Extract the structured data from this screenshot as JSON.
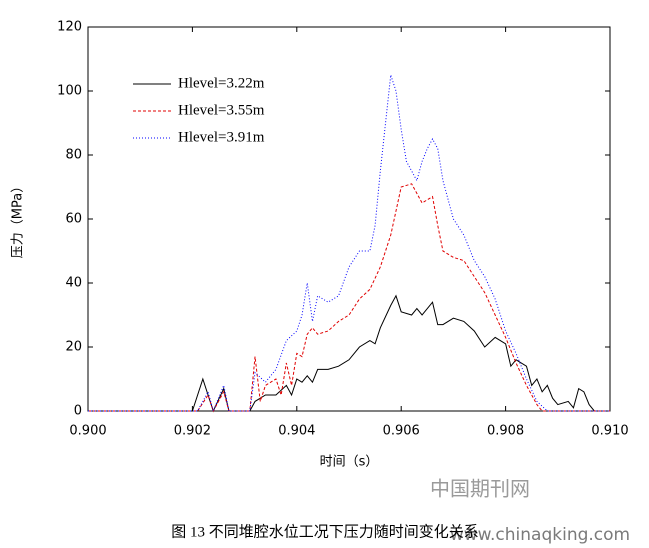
{
  "chart_data": {
    "type": "line",
    "caption": "图 13  不同堆腔水位工况下压力随时间变化关系",
    "xlabel": "时间（s）",
    "ylabel": "压力（MPa）",
    "watermark": [
      "中国期刊网",
      "www.chinaqking.com"
    ],
    "xlim": [
      0.9,
      0.91
    ],
    "xticks": [
      {
        "value": 0.9,
        "label": "0.900"
      },
      {
        "value": 0.902,
        "label": "0.902"
      },
      {
        "value": 0.904,
        "label": "0.904"
      },
      {
        "value": 0.906,
        "label": "0.906"
      },
      {
        "value": 0.908,
        "label": "0.908"
      },
      {
        "value": 0.91,
        "label": "0.910"
      }
    ],
    "ylim": [
      0,
      120
    ],
    "yticks": [
      0,
      20,
      40,
      60,
      80,
      100,
      120
    ],
    "legend": "upper left",
    "series": [
      {
        "name": "Hlevel=3.22m",
        "color": "#000000",
        "dash": "solid",
        "x": [
          0.9,
          0.902,
          0.9022,
          0.9024,
          0.9026,
          0.9027,
          0.9031,
          0.9032,
          0.9034,
          0.9036,
          0.9038,
          0.9039,
          0.904,
          0.9041,
          0.9042,
          0.9043,
          0.9044,
          0.9046,
          0.9048,
          0.905,
          0.9052,
          0.9054,
          0.9055,
          0.9056,
          0.9058,
          0.9059,
          0.906,
          0.9062,
          0.9063,
          0.9064,
          0.9066,
          0.9067,
          0.9068,
          0.907,
          0.9072,
          0.9074,
          0.9076,
          0.9078,
          0.908,
          0.9081,
          0.9082,
          0.9084,
          0.9085,
          0.9086,
          0.9087,
          0.9088,
          0.9089,
          0.909,
          0.9092,
          0.9093,
          0.9094,
          0.9095,
          0.9096,
          0.9097,
          0.91
        ],
        "values": [
          0,
          0,
          10,
          0,
          7,
          0,
          0,
          3,
          5,
          5,
          8,
          5,
          10,
          9,
          11,
          9,
          13,
          13,
          14,
          16,
          20,
          22,
          21,
          26,
          33,
          36,
          31,
          30,
          32,
          30,
          34,
          27,
          27,
          29,
          28,
          25,
          20,
          23,
          21,
          14,
          16,
          14,
          8,
          10,
          6,
          8,
          4,
          2,
          3,
          1,
          7,
          6,
          2,
          0,
          0
        ]
      },
      {
        "name": "Hlevel=3.55m",
        "color": "#e00000",
        "dash": "dashed",
        "x": [
          0.9,
          0.9021,
          0.9023,
          0.9024,
          0.9026,
          0.9027,
          0.9031,
          0.9032,
          0.9033,
          0.9034,
          0.9036,
          0.9037,
          0.9038,
          0.9039,
          0.904,
          0.9041,
          0.9042,
          0.9043,
          0.9044,
          0.9046,
          0.9048,
          0.905,
          0.9052,
          0.9054,
          0.9056,
          0.9058,
          0.906,
          0.9062,
          0.9063,
          0.9064,
          0.9066,
          0.9067,
          0.9068,
          0.907,
          0.9072,
          0.9074,
          0.9076,
          0.9078,
          0.908,
          0.9082,
          0.9084,
          0.9086,
          0.9087,
          0.91
        ],
        "values": [
          0,
          0,
          5,
          0,
          6,
          0,
          0,
          17,
          3,
          8,
          10,
          5,
          15,
          8,
          18,
          17,
          24,
          26,
          24,
          25,
          28,
          30,
          35,
          38,
          45,
          55,
          70,
          71,
          68,
          65,
          67,
          58,
          50,
          48,
          47,
          42,
          37,
          30,
          23,
          15,
          8,
          2,
          0,
          0
        ]
      },
      {
        "name": "Hlevel=3.91m",
        "color": "#0000ff",
        "dash": "dotted",
        "x": [
          0.9,
          0.9021,
          0.9023,
          0.9024,
          0.9026,
          0.9027,
          0.9031,
          0.9032,
          0.9034,
          0.9036,
          0.9038,
          0.904,
          0.9041,
          0.9042,
          0.9043,
          0.9044,
          0.9046,
          0.9048,
          0.905,
          0.9052,
          0.9054,
          0.9055,
          0.9056,
          0.9058,
          0.9059,
          0.906,
          0.9061,
          0.9062,
          0.9063,
          0.9064,
          0.9065,
          0.9066,
          0.9067,
          0.9068,
          0.907,
          0.9072,
          0.9074,
          0.9076,
          0.9078,
          0.908,
          0.9082,
          0.9084,
          0.9086,
          0.9088,
          0.91
        ],
        "values": [
          0,
          0,
          6,
          0,
          8,
          0,
          0,
          12,
          9,
          13,
          22,
          25,
          30,
          40,
          28,
          36,
          34,
          36,
          45,
          50,
          50,
          58,
          75,
          105,
          100,
          88,
          78,
          75,
          72,
          78,
          82,
          85,
          82,
          72,
          60,
          55,
          47,
          42,
          35,
          25,
          18,
          10,
          3,
          0,
          0
        ]
      }
    ]
  }
}
